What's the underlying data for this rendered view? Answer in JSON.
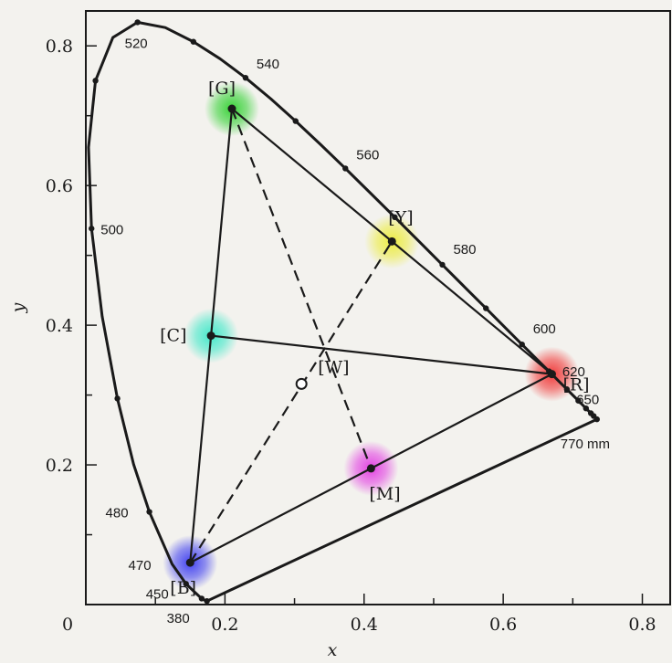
{
  "chart_data": {
    "type": "diagram",
    "xlabel": "x",
    "ylabel": "y",
    "xlim": [
      0,
      0.84
    ],
    "ylim": [
      0,
      0.85
    ],
    "x_ticks": [
      {
        "value": 0.2,
        "label": "0.2"
      },
      {
        "value": 0.4,
        "label": "0.4"
      },
      {
        "value": 0.6,
        "label": "0.6"
      },
      {
        "value": 0.8,
        "label": "0.8"
      }
    ],
    "y_ticks": [
      {
        "value": 0.2,
        "label": "0.2"
      },
      {
        "value": 0.4,
        "label": "0.4"
      },
      {
        "value": 0.6,
        "label": "0.6"
      },
      {
        "value": 0.8,
        "label": "0.8"
      }
    ],
    "origin_label": "0",
    "spectral_locus": [
      [
        0.1741,
        0.005
      ],
      [
        0.1736,
        0.0049
      ],
      [
        0.1665,
        0.0086
      ],
      [
        0.1566,
        0.0177
      ],
      [
        0.144,
        0.0297
      ],
      [
        0.1241,
        0.0578
      ],
      [
        0.0913,
        0.1327
      ],
      [
        0.0687,
        0.2007
      ],
      [
        0.0454,
        0.295
      ],
      [
        0.0235,
        0.4127
      ],
      [
        0.0082,
        0.5384
      ],
      [
        0.0039,
        0.6548
      ],
      [
        0.0139,
        0.7502
      ],
      [
        0.0389,
        0.812
      ],
      [
        0.0743,
        0.8338
      ],
      [
        0.1142,
        0.8262
      ],
      [
        0.1547,
        0.8059
      ],
      [
        0.1929,
        0.7816
      ],
      [
        0.2296,
        0.7543
      ],
      [
        0.2658,
        0.7243
      ],
      [
        0.3016,
        0.6923
      ],
      [
        0.3373,
        0.6589
      ],
      [
        0.3731,
        0.6245
      ],
      [
        0.4087,
        0.5896
      ],
      [
        0.4441,
        0.5547
      ],
      [
        0.4788,
        0.5202
      ],
      [
        0.5125,
        0.4866
      ],
      [
        0.5448,
        0.4544
      ],
      [
        0.5752,
        0.4242
      ],
      [
        0.6029,
        0.3965
      ],
      [
        0.627,
        0.3725
      ],
      [
        0.6482,
        0.3514
      ],
      [
        0.6658,
        0.334
      ],
      [
        0.6801,
        0.3197
      ],
      [
        0.6915,
        0.3083
      ],
      [
        0.7006,
        0.2993
      ],
      [
        0.7079,
        0.292
      ],
      [
        0.714,
        0.2859
      ],
      [
        0.719,
        0.2809
      ],
      [
        0.723,
        0.277
      ],
      [
        0.726,
        0.274
      ],
      [
        0.7283,
        0.2717
      ],
      [
        0.73,
        0.27
      ],
      [
        0.732,
        0.268
      ],
      [
        0.7347,
        0.2653
      ]
    ],
    "wavelength_labels": [
      {
        "text": "520",
        "x": 0.0743,
        "y": 0.8338,
        "dx": -14,
        "dy": 28
      },
      {
        "text": "540",
        "x": 0.2296,
        "y": 0.7543,
        "dx": 12,
        "dy": -10
      },
      {
        "text": "560",
        "x": 0.3731,
        "y": 0.6245,
        "dx": 12,
        "dy": -10
      },
      {
        "text": "580",
        "x": 0.5125,
        "y": 0.4866,
        "dx": 12,
        "dy": -12
      },
      {
        "text": "600",
        "x": 0.627,
        "y": 0.3725,
        "dx": 12,
        "dy": -12
      },
      {
        "text": "620",
        "x": 0.6915,
        "y": 0.3083,
        "dx": -5,
        "dy": -14
      },
      {
        "text": "650",
        "x": 0.726,
        "y": 0.274,
        "dx": -16,
        "dy": -10
      },
      {
        "text": "770 mm",
        "x": 0.7347,
        "y": 0.2653,
        "dx": -40,
        "dy": 32
      },
      {
        "text": "500",
        "x": 0.0082,
        "y": 0.5384,
        "dx": 10,
        "dy": 6
      },
      {
        "text": "480",
        "x": 0.0913,
        "y": 0.1327,
        "dx": -48,
        "dy": 6
      },
      {
        "text": "470",
        "x": 0.1241,
        "y": 0.0578,
        "dx": -48,
        "dy": 6
      },
      {
        "text": "450",
        "x": 0.144,
        "y": 0.0297,
        "dx": -44,
        "dy": 16
      },
      {
        "text": "380",
        "x": 0.1741,
        "y": 0.005,
        "dx": -44,
        "dy": 24
      }
    ],
    "points": [
      {
        "key": "G",
        "label": "[G]",
        "x": 0.21,
        "y": 0.71,
        "color": "#2fd12f",
        "dx": -26,
        "dy": -16
      },
      {
        "key": "R",
        "label": "[R]",
        "x": 0.67,
        "y": 0.33,
        "color": "#f03232",
        "dx": 12,
        "dy": 18
      },
      {
        "key": "B",
        "label": "[B]",
        "x": 0.15,
        "y": 0.06,
        "color": "#3a3af0",
        "dx": -22,
        "dy": 34
      },
      {
        "key": "Y",
        "label": "[Y]",
        "x": 0.44,
        "y": 0.52,
        "color": "#ecec3a",
        "dx": -4,
        "dy": -20
      },
      {
        "key": "C",
        "label": "[C]",
        "x": 0.18,
        "y": 0.385,
        "color": "#3ae8c8",
        "dx": -56,
        "dy": 6
      },
      {
        "key": "M",
        "label": "[M]",
        "x": 0.41,
        "y": 0.195,
        "color": "#e23ae2",
        "dx": -2,
        "dy": 34
      },
      {
        "key": "W",
        "label": "[W]",
        "x": 0.31,
        "y": 0.316,
        "color": "#ffffff",
        "dx": 18,
        "dy": -12
      }
    ],
    "solid_segments": [
      [
        "G",
        "R"
      ],
      [
        "R",
        "B"
      ],
      [
        "B",
        "G"
      ],
      [
        "C",
        "R"
      ]
    ],
    "dashed_segments": [
      [
        "G",
        "M"
      ],
      [
        "B",
        "Y"
      ]
    ],
    "colors": {
      "axis": "#1a1a1a",
      "curve": "#1a1a1a",
      "background": "#f3f2ee"
    }
  }
}
